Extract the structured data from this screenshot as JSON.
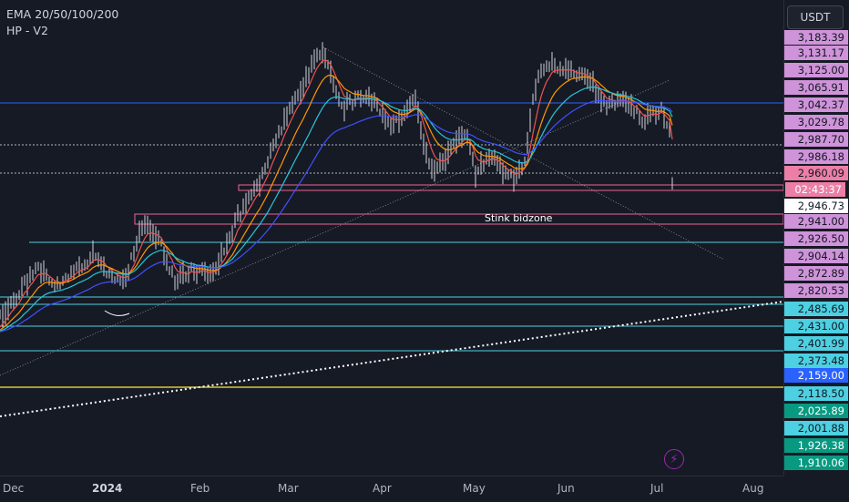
{
  "indicators": [
    "EMA 20/50/100/200",
    "HP - V2"
  ],
  "currency": "USDT",
  "annotation": "Stink bidzone",
  "countdown": "02:43:37",
  "lightning_icon": "lightning-icon",
  "colors": {
    "background": "#161a25",
    "candle": "#d1d4dc",
    "ema20": "#ef5350",
    "ema50": "#ff9800",
    "ema100": "#26c6da",
    "ema200": "#3f51ff",
    "hline_blue": "#2962ff",
    "hline_cyan": "#4dd0e1",
    "hline_yellow": "#ffeb3b",
    "zone_pink": "#f06292"
  },
  "price_axis": [
    {
      "text": "3,183.39",
      "bg": "#ce93d8"
    },
    {
      "text": "3,131.17",
      "bg": "#ce93d8"
    },
    {
      "text": "3,125.00",
      "bg": "#ce93d8"
    },
    {
      "text": "3,065.91",
      "bg": "#ce93d8"
    },
    {
      "text": "3,042.37",
      "bg": "#ce93d8"
    },
    {
      "text": "3,029.78",
      "bg": "#ce93d8"
    },
    {
      "text": "2,987.70",
      "bg": "#ce93d8"
    },
    {
      "text": "2,986.18",
      "bg": "#ce93d8"
    },
    {
      "text": "2,960.09",
      "bg": "#ec7fa6"
    },
    {
      "text": "2,946.73",
      "bg": "#ffffff"
    },
    {
      "text": "2,941.00",
      "bg": "#ce93d8"
    },
    {
      "text": "2,926.50",
      "bg": "#ce93d8"
    },
    {
      "text": "2,904.14",
      "bg": "#ce93d8"
    },
    {
      "text": "2,872.89",
      "bg": "#ce93d8"
    },
    {
      "text": "2,820.53",
      "bg": "#ce93d8"
    },
    {
      "text": "2,485.69",
      "bg": "#4dd0e1"
    },
    {
      "text": "2,431.00",
      "bg": "#4dd0e1"
    },
    {
      "text": "2,401.99",
      "bg": "#4dd0e1"
    },
    {
      "text": "2,373.48",
      "bg": "#4dd0e1"
    },
    {
      "text": "2,159.00",
      "bg": "#2962ff"
    },
    {
      "text": "2,118.50",
      "bg": "#4dd0e1"
    },
    {
      "text": "2,025.89",
      "bg": "#089981"
    },
    {
      "text": "2,001.88",
      "bg": "#4dd0e1"
    },
    {
      "text": "1,926.38",
      "bg": "#089981"
    },
    {
      "text": "1,910.06",
      "bg": "#089981"
    }
  ],
  "time_axis": [
    {
      "text": "Dec",
      "bold": false
    },
    {
      "text": "2024",
      "bold": true
    },
    {
      "text": "Feb",
      "bold": false
    },
    {
      "text": "Mar",
      "bold": false
    },
    {
      "text": "Apr",
      "bold": false
    },
    {
      "text": "May",
      "bold": false
    },
    {
      "text": "Jun",
      "bold": false
    },
    {
      "text": "Jul",
      "bold": false
    },
    {
      "text": "Aug",
      "bold": false
    }
  ]
}
